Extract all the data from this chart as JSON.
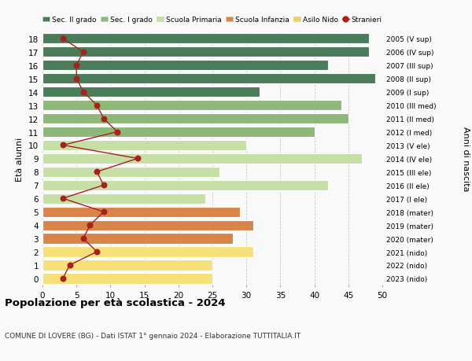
{
  "ages": [
    18,
    17,
    16,
    15,
    14,
    13,
    12,
    11,
    10,
    9,
    8,
    7,
    6,
    5,
    4,
    3,
    2,
    1,
    0
  ],
  "years": [
    "2005 (V sup)",
    "2006 (IV sup)",
    "2007 (III sup)",
    "2008 (II sup)",
    "2009 (I sup)",
    "2010 (III med)",
    "2011 (II med)",
    "2012 (I med)",
    "2013 (V ele)",
    "2014 (IV ele)",
    "2015 (III ele)",
    "2016 (II ele)",
    "2017 (I ele)",
    "2018 (mater)",
    "2019 (mater)",
    "2020 (mater)",
    "2021 (nido)",
    "2022 (nido)",
    "2023 (nido)"
  ],
  "bar_values": [
    48,
    48,
    42,
    49,
    32,
    44,
    45,
    40,
    30,
    47,
    26,
    42,
    24,
    29,
    31,
    28,
    31,
    25,
    25
  ],
  "bar_colors": [
    "#4a7c59",
    "#4a7c59",
    "#4a7c59",
    "#4a7c59",
    "#4a7c59",
    "#8db87a",
    "#8db87a",
    "#8db87a",
    "#c5dfa5",
    "#c5dfa5",
    "#c5dfa5",
    "#c5dfa5",
    "#c5dfa5",
    "#d9854a",
    "#d9854a",
    "#d9854a",
    "#f5e07a",
    "#f5e07a",
    "#f5e07a"
  ],
  "stranieri_values": [
    3,
    6,
    5,
    5,
    6,
    8,
    9,
    11,
    3,
    14,
    8,
    9,
    3,
    9,
    7,
    6,
    8,
    4,
    3
  ],
  "legend_labels": [
    "Sec. II grado",
    "Sec. I grado",
    "Scuola Primaria",
    "Scuola Infanzia",
    "Asilo Nido",
    "Stranieri"
  ],
  "legend_colors": [
    "#4a7c59",
    "#8db87a",
    "#c5dfa5",
    "#d9854a",
    "#f0d060",
    "#a82020"
  ],
  "xlabel_vals": [
    0,
    5,
    10,
    15,
    20,
    25,
    30,
    35,
    40,
    45,
    50
  ],
  "title": "Popolazione per età scolastica - 2024",
  "subtitle": "COMUNE DI LOVERE (BG) - Dati ISTAT 1° gennaio 2024 - Elaborazione TUTTITALIA.IT",
  "ylabel_left": "Età alunni",
  "ylabel_right": "Anni di nascita",
  "background_color": "#f9f9f9",
  "grid_color": "#cccccc",
  "xlim": [
    0,
    50
  ]
}
